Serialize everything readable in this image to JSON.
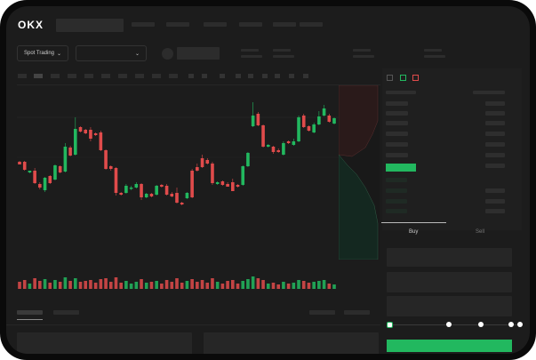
{
  "header": {
    "logo": "OKX"
  },
  "toolbar": {
    "market_selector": "Spot Trading",
    "pair_selector": ""
  },
  "trade_panel": {
    "buy_tab": "Buy",
    "sell_tab": "Sell",
    "active_tab": "Buy",
    "leverage_slider_level": 0,
    "colors": {
      "buy": "#22b85f",
      "sell": "#e04b4b"
    }
  },
  "icons": [
    "okx-logo",
    "chevron-down-icon",
    "orderbook-both-icon",
    "orderbook-bids-icon",
    "orderbook-asks-icon"
  ],
  "chart_data": {
    "type": "candlestick",
    "note_units": "unlabeled price levels",
    "candles": [
      [
        58,
        55,
        59,
        55
      ],
      [
        58,
        49,
        59,
        48
      ],
      [
        46,
        48,
        48,
        45
      ],
      [
        48,
        34,
        51,
        33
      ],
      [
        33,
        29,
        35,
        27
      ],
      [
        26,
        40,
        41,
        24
      ],
      [
        42,
        34,
        43,
        33
      ],
      [
        38,
        54,
        55,
        37
      ],
      [
        53,
        46,
        54,
        45
      ],
      [
        47,
        75,
        79,
        46
      ],
      [
        74,
        65,
        76,
        64
      ],
      [
        66,
        95,
        108,
        65
      ],
      [
        97,
        92,
        98,
        91
      ],
      [
        94,
        90,
        95,
        89
      ],
      [
        94,
        84,
        97,
        81
      ],
      [
        90,
        88,
        91,
        87
      ],
      [
        91,
        71,
        93,
        70
      ],
      [
        71,
        50,
        72,
        49
      ],
      [
        53,
        50,
        54,
        48
      ],
      [
        51,
        23,
        52,
        20
      ],
      [
        23,
        21,
        24,
        20
      ],
      [
        23,
        31,
        33,
        22
      ],
      [
        28,
        29,
        31,
        26
      ],
      [
        29,
        33,
        35,
        28
      ],
      [
        33,
        18,
        34,
        15
      ],
      [
        18,
        22,
        23,
        17
      ],
      [
        22,
        19,
        23,
        18
      ],
      [
        21,
        31,
        32,
        20
      ],
      [
        32,
        30,
        33,
        29
      ],
      [
        31,
        21,
        33,
        20
      ],
      [
        22,
        19,
        24,
        18
      ],
      [
        23,
        12,
        29,
        11
      ],
      [
        12,
        10,
        13,
        9
      ],
      [
        17,
        23,
        24,
        16
      ],
      [
        48,
        18,
        50,
        17
      ],
      [
        52,
        48,
        56,
        47
      ],
      [
        62,
        52,
        66,
        51
      ],
      [
        60,
        56,
        62,
        55
      ],
      [
        56,
        34,
        58,
        32
      ],
      [
        33,
        35,
        36,
        32
      ],
      [
        36,
        32,
        37,
        31
      ],
      [
        33,
        30,
        35,
        30
      ],
      [
        35,
        25,
        39,
        25
      ],
      [
        32,
        30,
        33,
        29
      ],
      [
        32,
        53,
        54,
        31
      ],
      [
        53,
        68,
        69,
        52
      ],
      [
        98,
        110,
        125,
        97
      ],
      [
        112,
        99,
        114,
        98
      ],
      [
        99,
        75,
        100,
        74
      ],
      [
        75,
        77,
        78,
        74
      ],
      [
        75,
        69,
        76,
        67
      ],
      [
        71,
        69,
        73,
        68
      ],
      [
        66,
        79,
        81,
        65
      ],
      [
        81,
        79,
        82,
        78
      ],
      [
        77,
        81,
        84,
        76
      ],
      [
        81,
        108,
        110,
        80
      ],
      [
        110,
        97,
        112,
        96
      ],
      [
        98,
        93,
        99,
        92
      ],
      [
        91,
        100,
        102,
        90
      ],
      [
        100,
        109,
        115,
        99
      ],
      [
        110,
        118,
        122,
        109
      ],
      [
        110,
        103,
        112,
        102
      ],
      [
        101,
        107,
        108,
        100
      ]
    ],
    "volume": [
      8,
      10,
      6,
      12,
      9,
      11,
      7,
      10,
      8,
      13,
      9,
      12,
      8,
      9,
      10,
      7,
      11,
      12,
      8,
      13,
      7,
      9,
      6,
      8,
      11,
      7,
      8,
      9,
      6,
      10,
      8,
      12,
      7,
      9,
      11,
      8,
      10,
      7,
      12,
      8,
      6,
      9,
      10,
      6,
      9,
      11,
      14,
      12,
      10,
      6,
      7,
      5,
      8,
      6,
      7,
      10,
      9,
      7,
      8,
      9,
      10,
      6,
      5
    ]
  }
}
